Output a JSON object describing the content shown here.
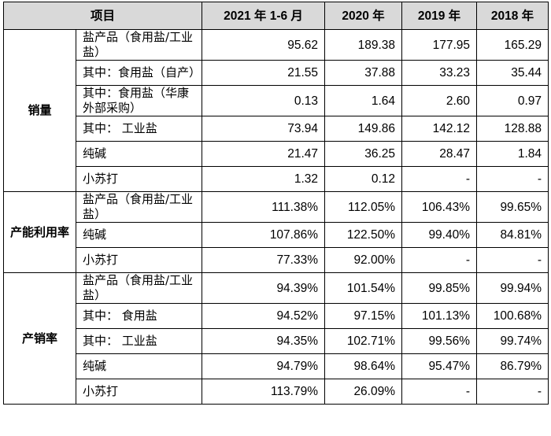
{
  "header": {
    "item": "项目",
    "years": [
      "2021 年 1-6 月",
      "2020 年",
      "2019 年",
      "2018 年"
    ]
  },
  "groups": [
    {
      "name": "销量",
      "rows": [
        {
          "label": "盐产品（食用盐/工业盐）",
          "values": [
            "95.62",
            "189.38",
            "177.95",
            "165.29"
          ]
        },
        {
          "label": "其中：食用盐（自产）",
          "values": [
            "21.55",
            "37.88",
            "33.23",
            "35.44"
          ]
        },
        {
          "label": "其中：食用盐（华康外部采购）",
          "values": [
            "0.13",
            "1.64",
            "2.60",
            "0.97"
          ]
        },
        {
          "label": "其中： 工业盐",
          "values": [
            "73.94",
            "149.86",
            "142.12",
            "128.88"
          ]
        },
        {
          "label": "纯碱",
          "values": [
            "21.47",
            "36.25",
            "28.47",
            "1.84"
          ]
        },
        {
          "label": "小苏打",
          "values": [
            "1.32",
            "0.12",
            "-",
            "-"
          ]
        }
      ]
    },
    {
      "name": "产能利用率",
      "rows": [
        {
          "label": "盐产品（食用盐/工业盐）",
          "values": [
            "111.38%",
            "112.05%",
            "106.43%",
            "99.65%"
          ]
        },
        {
          "label": "纯碱",
          "values": [
            "107.86%",
            "122.50%",
            "99.40%",
            "84.81%"
          ]
        },
        {
          "label": "小苏打",
          "values": [
            "77.33%",
            "92.00%",
            "-",
            "-"
          ]
        }
      ]
    },
    {
      "name": "产销率",
      "rows": [
        {
          "label": "盐产品（食用盐/工业盐）",
          "values": [
            "94.39%",
            "101.54%",
            "99.85%",
            "99.94%"
          ]
        },
        {
          "label": "其中： 食用盐",
          "values": [
            "94.52%",
            "97.15%",
            "101.13%",
            "100.68%"
          ]
        },
        {
          "label": "其中： 工业盐",
          "values": [
            "94.35%",
            "102.71%",
            "99.56%",
            "99.74%"
          ]
        },
        {
          "label": "纯碱",
          "values": [
            "94.79%",
            "98.64%",
            "95.47%",
            "86.79%"
          ]
        },
        {
          "label": "小苏打",
          "values": [
            "113.79%",
            "26.09%",
            "-",
            "-"
          ]
        }
      ]
    }
  ]
}
